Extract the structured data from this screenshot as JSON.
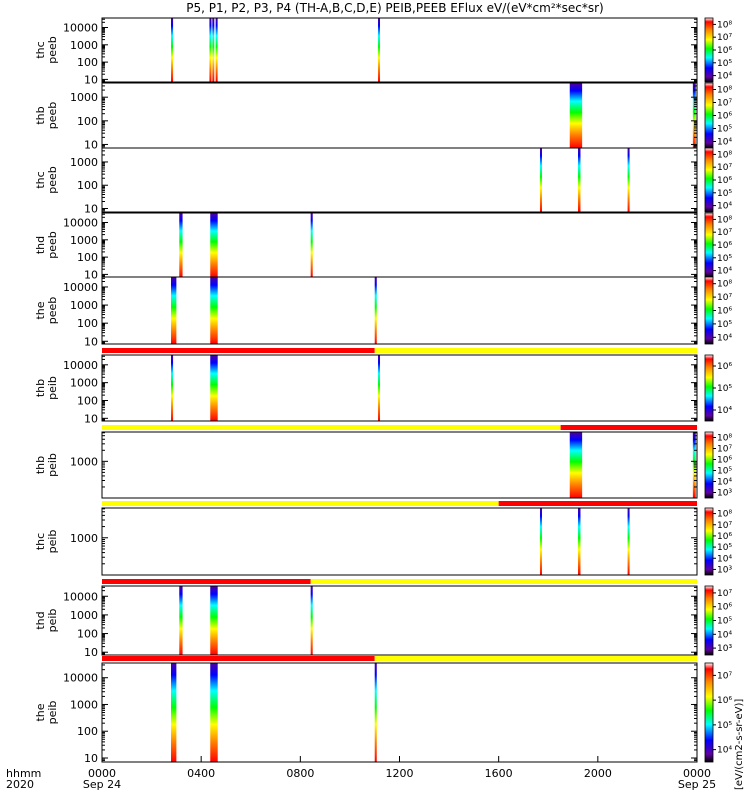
{
  "title": "P5, P1, P2, P3, P4 (TH-A,B,C,D,E) PEIB,PEEB EFlux eV/(eV*cm²*sec*sr)",
  "colorbar_label": "[eV/(cm2-s-sr-eV)]",
  "x_axis": {
    "row_label": "hhmm",
    "year_label": "2020",
    "ticks": [
      {
        "t": 0,
        "label": "0000",
        "sub": "Sep 24"
      },
      {
        "t": 240,
        "label": "0400",
        "sub": ""
      },
      {
        "t": 480,
        "label": "0800",
        "sub": ""
      },
      {
        "t": 720,
        "label": "1200",
        "sub": ""
      },
      {
        "t": 960,
        "label": "1600",
        "sub": ""
      },
      {
        "t": 1200,
        "label": "2000",
        "sub": ""
      },
      {
        "t": 1440,
        "label": "0000",
        "sub": "Sep 25"
      }
    ]
  },
  "chart_data": {
    "type": "heatmap",
    "x_unit": "minutes since 2020-09-24 00:00",
    "xlim": [
      0,
      1440
    ],
    "energy_scale": "log",
    "colors": {
      "mode_fast": "#ff0000",
      "mode_slow": "#ffff00"
    },
    "panels": [
      {
        "probe": "thc",
        "instrument": "peeb",
        "ylabel": [
          "thc",
          "peeb"
        ],
        "yticks": [
          "10",
          "100",
          "1000",
          "10000"
        ],
        "ylim_log": [
          0.85,
          4.55
        ],
        "colorbar_ticks": [
          "10⁴",
          "10⁵",
          "10⁶",
          "10⁷",
          "10⁸"
        ],
        "segments": [
          [
            167,
            172
          ],
          [
            260,
            265
          ],
          [
            267,
            270
          ],
          [
            275,
            278
          ],
          [
            668,
            672
          ]
        ]
      },
      {
        "probe": "thb",
        "instrument": "peeb",
        "ylabel": [
          "thb",
          "peeb"
        ],
        "yticks": [
          "10",
          "100",
          "1000"
        ],
        "ylim_log": [
          0.85,
          3.6
        ],
        "colorbar_ticks": [
          "10⁴",
          "10⁵",
          "10⁶",
          "10⁷",
          "10⁸"
        ],
        "segments": [
          [
            1132,
            1162
          ],
          [
            1430,
            1437
          ]
        ]
      },
      {
        "probe": "thc",
        "instrument": "peeb",
        "ylabel": [
          "thc",
          "peeb"
        ],
        "yticks": [
          "10",
          "100",
          "1000"
        ],
        "ylim_log": [
          0.85,
          3.6
        ],
        "colorbar_ticks": [
          "10⁴",
          "10⁵",
          "10⁶",
          "10⁷",
          "10⁸"
        ],
        "segments": [
          [
            1060,
            1064
          ],
          [
            1152,
            1158
          ],
          [
            1272,
            1276
          ]
        ]
      },
      {
        "probe": "thd",
        "instrument": "peeb",
        "ylabel": [
          "thd",
          "peeb"
        ],
        "yticks": [
          "10",
          "100",
          "1000",
          "10000"
        ],
        "ylim_log": [
          0.85,
          4.55
        ],
        "colorbar_ticks": [
          "10⁴",
          "10⁵",
          "10⁶",
          "10⁷",
          "10⁸"
        ],
        "segments": [
          [
            187,
            195
          ],
          [
            262,
            280
          ],
          [
            505,
            510
          ]
        ]
      },
      {
        "probe": "the",
        "instrument": "peeb",
        "ylabel": [
          "the",
          "peeb"
        ],
        "yticks": [
          "10",
          "100",
          "1000",
          "10000"
        ],
        "ylim_log": [
          0.85,
          4.55
        ],
        "colorbar_ticks": [
          "10⁴",
          "10⁵",
          "10⁶",
          "10⁷",
          "10⁸"
        ],
        "segments": [
          [
            167,
            180
          ],
          [
            262,
            280
          ],
          [
            660,
            665
          ]
        ]
      },
      {
        "probe": "thb",
        "instrument": "peib",
        "ylabel": [
          "thb",
          "peib"
        ],
        "yticks": [
          "10",
          "100",
          "1000",
          "10000"
        ],
        "ylim_log": [
          0.85,
          4.55
        ],
        "colorbar_ticks": [
          "10⁴",
          "10⁵",
          "10⁶"
        ],
        "mode_bar": [
          {
            "from": 0,
            "to": 660,
            "mode": "fast"
          },
          {
            "from": 660,
            "to": 1440,
            "mode": "slow"
          }
        ],
        "segments": [
          [
            167,
            172
          ],
          [
            262,
            280
          ],
          [
            668,
            672
          ]
        ]
      },
      {
        "probe": "thb",
        "instrument": "peib",
        "ylabel": [
          "thb",
          "peib"
        ],
        "yticks": [
          "1000"
        ],
        "ylim_log": [
          2.0,
          3.8
        ],
        "colorbar_ticks": [
          "10³",
          "10⁴",
          "10⁵",
          "10⁶",
          "10⁷",
          "10⁸"
        ],
        "mode_bar": [
          {
            "from": 0,
            "to": 1110,
            "mode": "slow"
          },
          {
            "from": 1110,
            "to": 1440,
            "mode": "fast"
          }
        ],
        "segments": [
          [
            1132,
            1162
          ],
          [
            1430,
            1437
          ]
        ]
      },
      {
        "probe": "thc",
        "instrument": "peib",
        "ylabel": [
          "thc",
          "peib"
        ],
        "yticks": [
          "1000"
        ],
        "ylim_log": [
          2.0,
          3.8
        ],
        "colorbar_ticks": [
          "10³",
          "10⁴",
          "10⁵",
          "10⁶",
          "10⁷",
          "10⁸"
        ],
        "mode_bar": [
          {
            "from": 0,
            "to": 960,
            "mode": "slow"
          },
          {
            "from": 960,
            "to": 1440,
            "mode": "fast"
          }
        ],
        "segments": [
          [
            1060,
            1064
          ],
          [
            1152,
            1158
          ],
          [
            1272,
            1276
          ]
        ]
      },
      {
        "probe": "thd",
        "instrument": "peib",
        "ylabel": [
          "thd",
          "peib"
        ],
        "yticks": [
          "10",
          "100",
          "1000",
          "10000"
        ],
        "ylim_log": [
          0.85,
          4.55
        ],
        "colorbar_ticks": [
          "10³",
          "10⁴",
          "10⁵",
          "10⁶",
          "10⁷"
        ],
        "mode_bar": [
          {
            "from": 0,
            "to": 505,
            "mode": "fast"
          },
          {
            "from": 505,
            "to": 1440,
            "mode": "slow"
          }
        ],
        "segments": [
          [
            187,
            195
          ],
          [
            262,
            280
          ],
          [
            505,
            510
          ]
        ]
      },
      {
        "probe": "the",
        "instrument": "peib",
        "ylabel": [
          "the",
          "peib"
        ],
        "yticks": [
          "10",
          "100",
          "1000",
          "10000"
        ],
        "ylim_log": [
          0.85,
          4.55
        ],
        "colorbar_ticks": [
          "10⁴",
          "10⁵",
          "10⁶",
          "10⁷"
        ],
        "mode_bar": [
          {
            "from": 0,
            "to": 660,
            "mode": "fast"
          },
          {
            "from": 660,
            "to": 1440,
            "mode": "slow"
          }
        ],
        "segments": [
          [
            167,
            180
          ],
          [
            262,
            280
          ],
          [
            660,
            665
          ]
        ]
      }
    ]
  }
}
